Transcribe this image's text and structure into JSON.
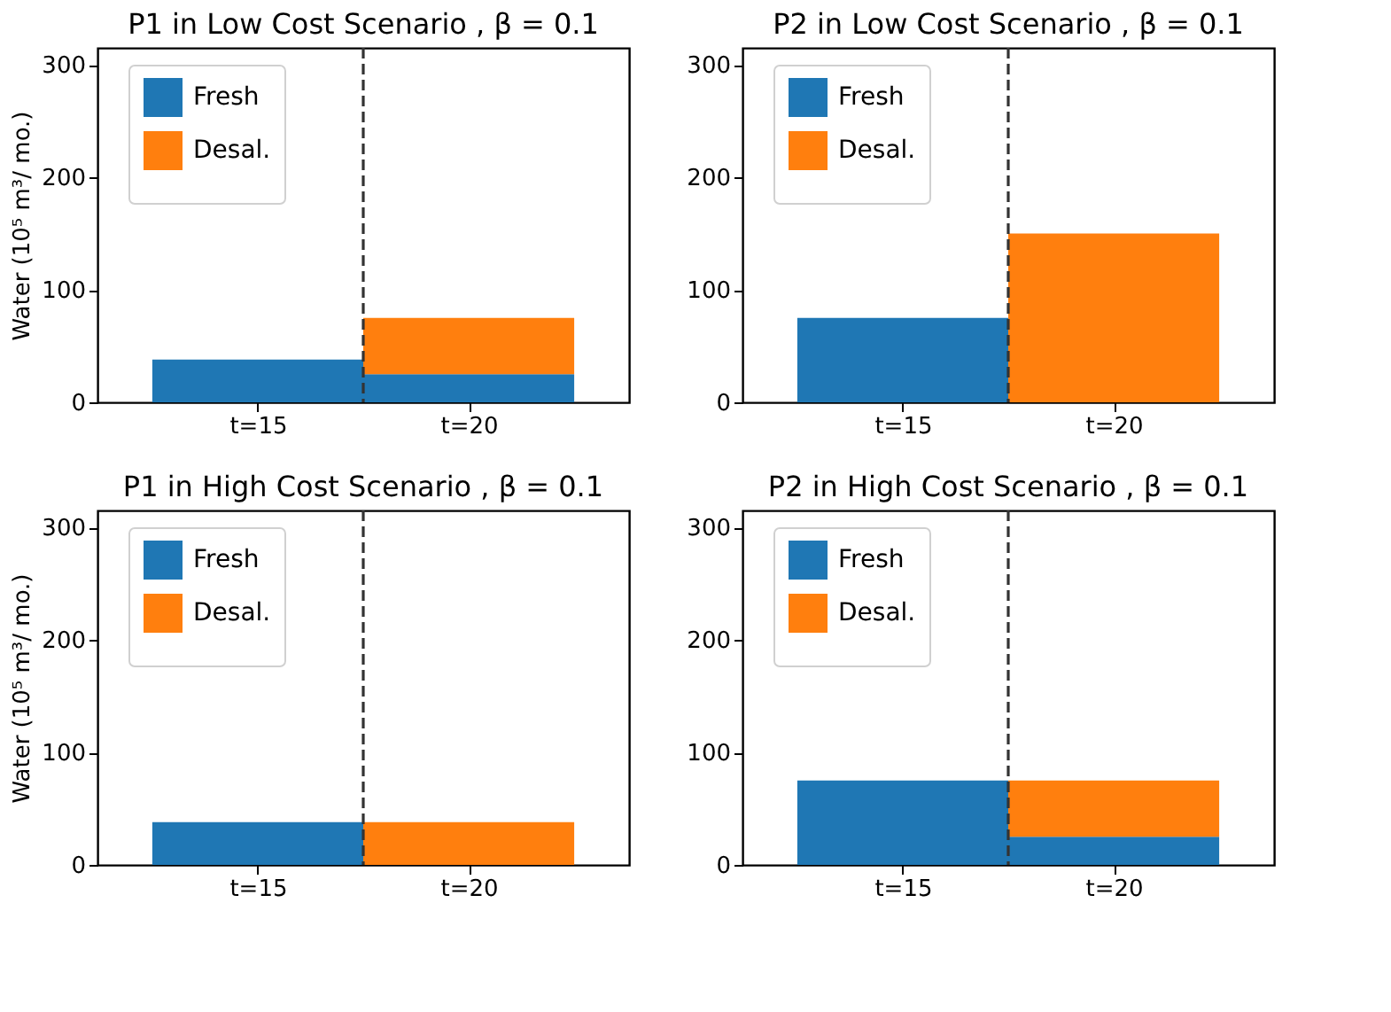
{
  "chart_data": [
    {
      "type": "bar",
      "title": "P1 in Low Cost Scenario , β = 0.1",
      "ylabel": "Water (10⁵  m³/ mo.)",
      "categories": [
        "t=15",
        "t=20"
      ],
      "stacked": true,
      "legend": "top left",
      "grid": false,
      "ylim": [
        0,
        315
      ],
      "yticks": [
        0,
        100,
        200,
        300
      ],
      "series": [
        {
          "name": "Fresh",
          "color": "#1f77b4",
          "values": [
            38,
            25
          ]
        },
        {
          "name": "Desal.",
          "color": "#ff7f0e",
          "values": [
            0,
            50
          ]
        }
      ]
    },
    {
      "type": "bar",
      "title": "P2 in Low Cost Scenario , β = 0.1",
      "categories": [
        "t=15",
        "t=20"
      ],
      "stacked": true,
      "legend": "top left",
      "grid": false,
      "ylim": [
        0,
        315
      ],
      "yticks": [
        0,
        100,
        200,
        300
      ],
      "series": [
        {
          "name": "Fresh",
          "color": "#1f77b4",
          "values": [
            75,
            0
          ]
        },
        {
          "name": "Desal.",
          "color": "#ff7f0e",
          "values": [
            0,
            150
          ]
        }
      ]
    },
    {
      "type": "bar",
      "title": "P1 in High Cost Scenario , β = 0.1",
      "ylabel": "Water (10⁵  m³/ mo.)",
      "categories": [
        "t=15",
        "t=20"
      ],
      "stacked": true,
      "legend": "top left",
      "grid": false,
      "ylim": [
        0,
        315
      ],
      "yticks": [
        0,
        100,
        200,
        300
      ],
      "series": [
        {
          "name": "Fresh",
          "color": "#1f77b4",
          "values": [
            38,
            0
          ]
        },
        {
          "name": "Desal.",
          "color": "#ff7f0e",
          "values": [
            0,
            38
          ]
        }
      ]
    },
    {
      "type": "bar",
      "title": "P2 in High Cost Scenario , β = 0.1",
      "categories": [
        "t=15",
        "t=20"
      ],
      "stacked": true,
      "legend": "top left",
      "grid": false,
      "ylim": [
        0,
        315
      ],
      "yticks": [
        0,
        100,
        200,
        300
      ],
      "series": [
        {
          "name": "Fresh",
          "color": "#1f77b4",
          "values": [
            75,
            25
          ]
        },
        {
          "name": "Desal.",
          "color": "#ff7f0e",
          "values": [
            0,
            50
          ]
        }
      ]
    }
  ]
}
